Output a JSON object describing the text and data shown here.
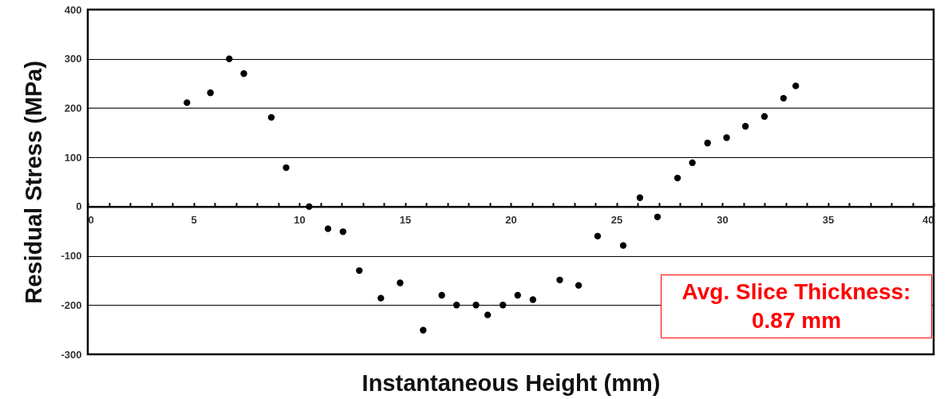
{
  "chart_data": {
    "type": "scatter",
    "xlabel": "Instantaneous Height (mm)",
    "ylabel": "Residual Stress (MPa)",
    "x": [
      4.69,
      5.8,
      6.69,
      7.38,
      8.68,
      9.38,
      10.47,
      11.36,
      12.07,
      12.84,
      13.86,
      14.77,
      15.86,
      16.74,
      17.44,
      18.36,
      18.91,
      19.63,
      20.33,
      21.05,
      22.32,
      23.21,
      24.11,
      25.32,
      26.11,
      26.94,
      27.89,
      28.59,
      29.31,
      30.21,
      31.1,
      32.0,
      32.9,
      33.48
    ],
    "series": [
      {
        "color": "#000000",
        "values": [
          211,
          231,
          300,
          270,
          181,
          79,
          0,
          -45,
          -51,
          -130,
          -186,
          -155,
          -251,
          -180,
          -200,
          -200,
          -220,
          -200,
          -180,
          -189,
          -149,
          -160,
          -60,
          -79,
          18,
          -21,
          58,
          89,
          129,
          140,
          163,
          183,
          220,
          245
        ]
      }
    ],
    "xlim": [
      0,
      40
    ],
    "ylim": [
      -300,
      400
    ],
    "xticks": [
      0,
      {
        "value": 1,
        "label": null
      },
      {
        "value": 2,
        "label": null
      },
      {
        "value": 3,
        "label": null
      },
      {
        "value": 4,
        "label": null
      },
      5,
      {
        "value": 6,
        "label": null
      },
      {
        "value": 7,
        "label": null
      },
      {
        "value": 8,
        "label": null
      },
      {
        "value": 9,
        "label": null
      },
      10,
      {
        "value": 11,
        "label": null
      },
      {
        "value": 12,
        "label": null
      },
      {
        "value": 13,
        "label": null
      },
      {
        "value": 14,
        "label": null
      },
      15,
      {
        "value": 16,
        "label": null
      },
      {
        "value": 17,
        "label": null
      },
      {
        "value": 18,
        "label": null
      },
      {
        "value": 19,
        "label": null
      },
      20,
      {
        "value": 21,
        "label": null
      },
      {
        "value": 22,
        "label": null
      },
      {
        "value": 23,
        "label": null
      },
      {
        "value": 24,
        "label": null
      },
      25,
      {
        "value": 26,
        "label": null
      },
      {
        "value": 27,
        "label": null
      },
      {
        "value": 28,
        "label": null
      },
      {
        "value": 29,
        "label": null
      },
      30,
      {
        "value": 31,
        "label": null
      },
      {
        "value": 32,
        "label": null
      },
      {
        "value": 33,
        "label": null
      },
      {
        "value": 34,
        "label": null
      },
      35,
      {
        "value": 36,
        "label": null
      },
      {
        "value": 37,
        "label": null
      },
      {
        "value": 38,
        "label": null
      },
      {
        "value": 39,
        "label": null
      },
      40
    ],
    "yticks": [
      -300,
      -200,
      -100,
      0,
      100,
      200,
      300,
      400
    ],
    "grid": "y",
    "marker": "circle",
    "annotations": [
      "Avg. Slice Thickness: 0.87 mm"
    ]
  }
}
